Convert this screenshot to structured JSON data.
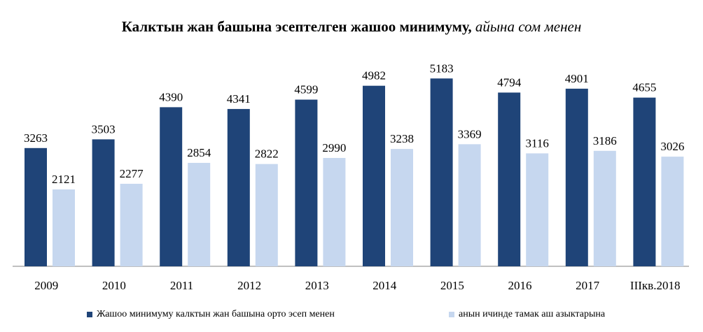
{
  "chart_data": {
    "type": "bar",
    "title": "Калктын жан башына эсептелген жашоо минимуму,",
    "subtitle": "айына сом менен",
    "categories": [
      "2009",
      "2010",
      "2011",
      "2012",
      "2013",
      "2014",
      "2015",
      "2016",
      "2017",
      "IIIкв.2018"
    ],
    "series": [
      {
        "name": "Жашоо минимуму калктын жан башына орто эсеп менен",
        "color": "#1f4478",
        "values": [
          3263,
          3503,
          4390,
          4341,
          4599,
          4982,
          5183,
          4794,
          4901,
          4655
        ]
      },
      {
        "name": "анын ичинде тамак аш азыктарына",
        "color": "#c6d7ef",
        "values": [
          2121,
          2277,
          2854,
          2822,
          2990,
          3238,
          3369,
          3116,
          3186,
          3026
        ]
      }
    ],
    "ylim": [
      0,
      6000
    ],
    "grid": false,
    "legend_position": "bottom",
    "data_labels": true
  }
}
